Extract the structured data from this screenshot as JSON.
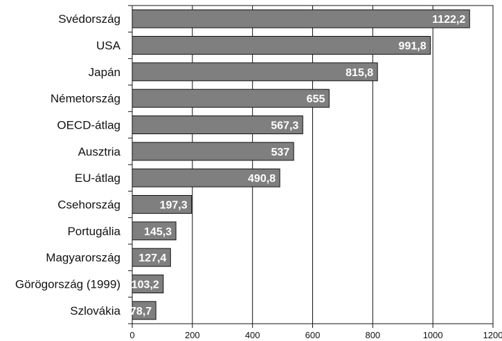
{
  "chart_data": {
    "type": "bar",
    "orientation": "horizontal",
    "title": "",
    "xlabel": "",
    "ylabel": "",
    "categories": [
      "Svédország",
      "USA",
      "Japán",
      "Németország",
      "OECD-átlag",
      "Ausztria",
      "EU-átlag",
      "Csehország",
      "Portugália",
      "Magyarország",
      "Görögország (1999)",
      "Szlovákia"
    ],
    "values": [
      1122.2,
      991.8,
      815.8,
      655,
      567.3,
      537,
      490.8,
      197.3,
      145.3,
      127.4,
      103.2,
      78.7
    ],
    "value_labels": [
      "1122,2",
      "991,8",
      "815,8",
      "655",
      "567,3",
      "537",
      "490,8",
      "197,3",
      "145,3",
      "127,4",
      "103,2",
      "78,7"
    ],
    "xlim": [
      0,
      1200
    ],
    "xticks": [
      "0",
      "200",
      "400",
      "600",
      "800",
      "1000",
      "1200"
    ],
    "grid": "vertical",
    "legend": "none",
    "colors": {
      "bar_fill": "#7f7f7f",
      "bar_stroke": "#111111",
      "axis": "#111111",
      "grid": "#111111",
      "label_text": "#ffffff"
    }
  }
}
